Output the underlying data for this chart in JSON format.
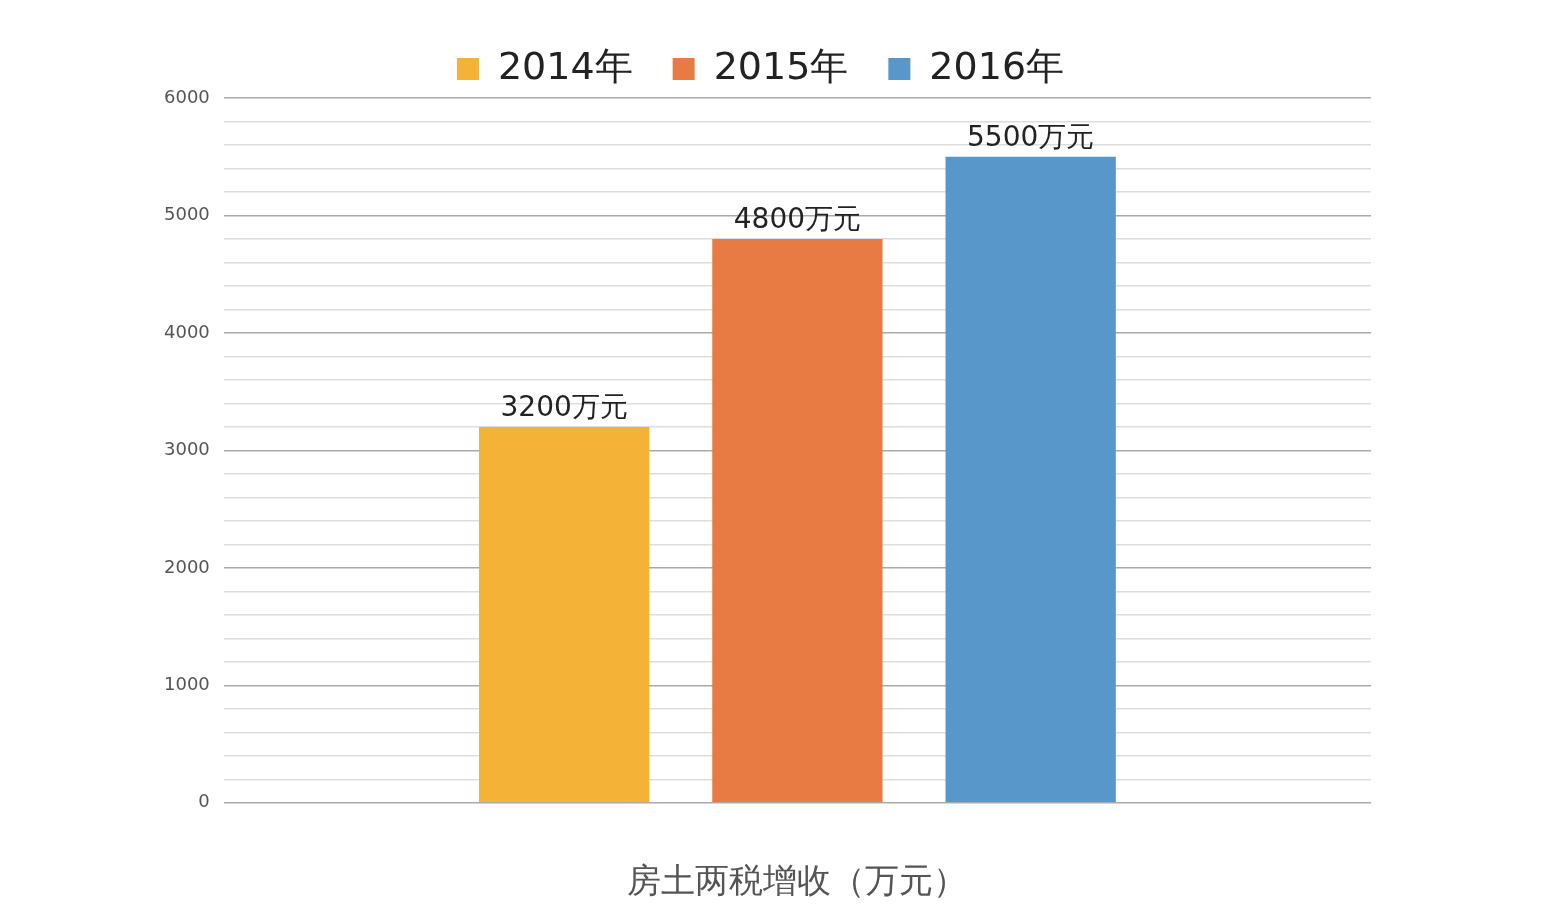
{
  "chart_data": {
    "type": "bar",
    "xlabel": "房土两税增收（万元）",
    "categories": [
      null
    ],
    "series": [
      {
        "name": "2014年",
        "color": "#f4b337",
        "values": [
          3200
        ],
        "value_labels": [
          "3200万元"
        ]
      },
      {
        "name": "2015年",
        "color": "#e77b43",
        "values": [
          4800
        ],
        "value_labels": [
          "4800万元"
        ]
      },
      {
        "name": "2016年",
        "color": "#5797c9",
        "values": [
          5500
        ],
        "value_labels": [
          "5500万元"
        ]
      }
    ],
    "ylim": [
      0,
      6000
    ],
    "yticks": [
      0,
      {
        "value": 200,
        "label": null
      },
      {
        "value": 400,
        "label": null
      },
      {
        "value": 600,
        "label": null
      },
      {
        "value": 800,
        "label": null
      },
      1000,
      {
        "value": 1200,
        "label": null
      },
      {
        "value": 1400,
        "label": null
      },
      {
        "value": 1600,
        "label": null
      },
      {
        "value": 1800,
        "label": null
      },
      2000,
      {
        "value": 2200,
        "label": null
      },
      {
        "value": 2400,
        "label": null
      },
      {
        "value": 2600,
        "label": null
      },
      {
        "value": 2800,
        "label": null
      },
      3000,
      {
        "value": 3200,
        "label": null
      },
      {
        "value": 3400,
        "label": null
      },
      {
        "value": 3600,
        "label": null
      },
      {
        "value": 3800,
        "label": null
      },
      4000,
      {
        "value": 4200,
        "label": null
      },
      {
        "value": 4400,
        "label": null
      },
      {
        "value": 4600,
        "label": null
      },
      {
        "value": 4800,
        "label": null
      },
      5000,
      {
        "value": 5200,
        "label": null
      },
      {
        "value": 5400,
        "label": null
      },
      {
        "value": 5600,
        "label": null
      },
      {
        "value": 5800,
        "label": null
      },
      6000
    ],
    "grid": "y",
    "legend": "top"
  }
}
